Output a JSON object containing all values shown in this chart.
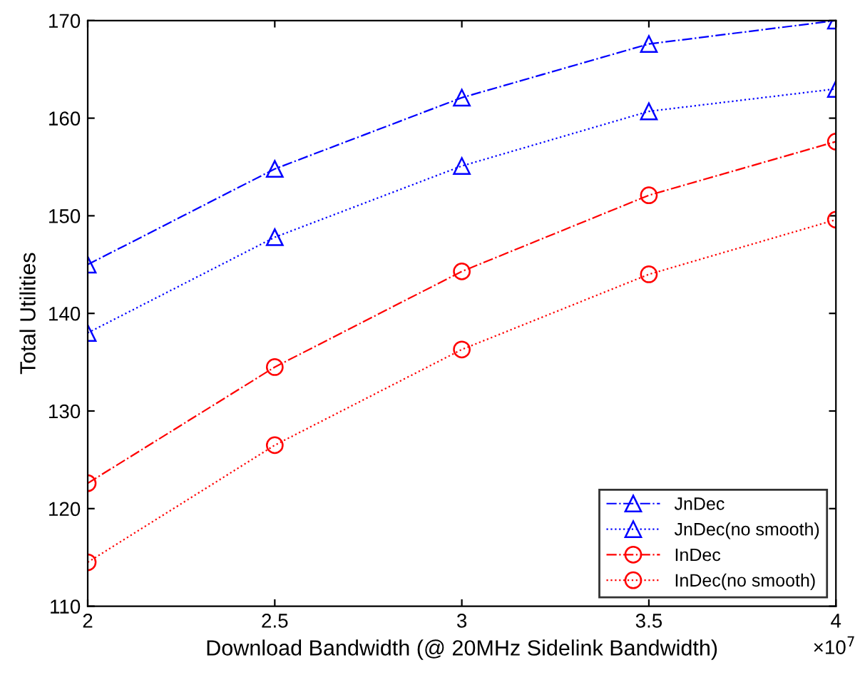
{
  "chart_data": {
    "type": "line",
    "xlabel": "Download Bandwidth (@ 20MHz Sidelink Bandwidth)",
    "ylabel": "Total Utilities",
    "x": [
      2,
      2.5,
      3,
      3.5,
      4
    ],
    "series": [
      {
        "name": "JnDec",
        "color": "#0000ff",
        "marker": "triangle",
        "line_style": "dashdot",
        "values": [
          145,
          154.8,
          162.1,
          167.6,
          170
        ]
      },
      {
        "name": "JnDec(no smooth)",
        "color": "#0000ff",
        "marker": "triangle",
        "line_style": "dotted",
        "values": [
          138,
          147.8,
          155.1,
          160.7,
          163
        ]
      },
      {
        "name": "InDec",
        "color": "#ff0000",
        "marker": "circle",
        "line_style": "dashdot",
        "values": [
          122.6,
          134.5,
          144.3,
          152.1,
          157.6
        ]
      },
      {
        "name": "InDec(no smooth)",
        "color": "#ff0000",
        "marker": "circle",
        "line_style": "dotted",
        "values": [
          114.5,
          126.5,
          136.3,
          144,
          149.6
        ]
      }
    ],
    "xlim": [
      2,
      4
    ],
    "xticks": [
      2,
      2.5,
      3,
      3.5,
      4
    ],
    "ylim": [
      110,
      170
    ],
    "yticks": [
      110,
      120,
      130,
      140,
      150,
      160,
      170
    ],
    "annotations": [
      "×10$^{7}$"
    ],
    "grid": false,
    "legend": "bottom right"
  }
}
